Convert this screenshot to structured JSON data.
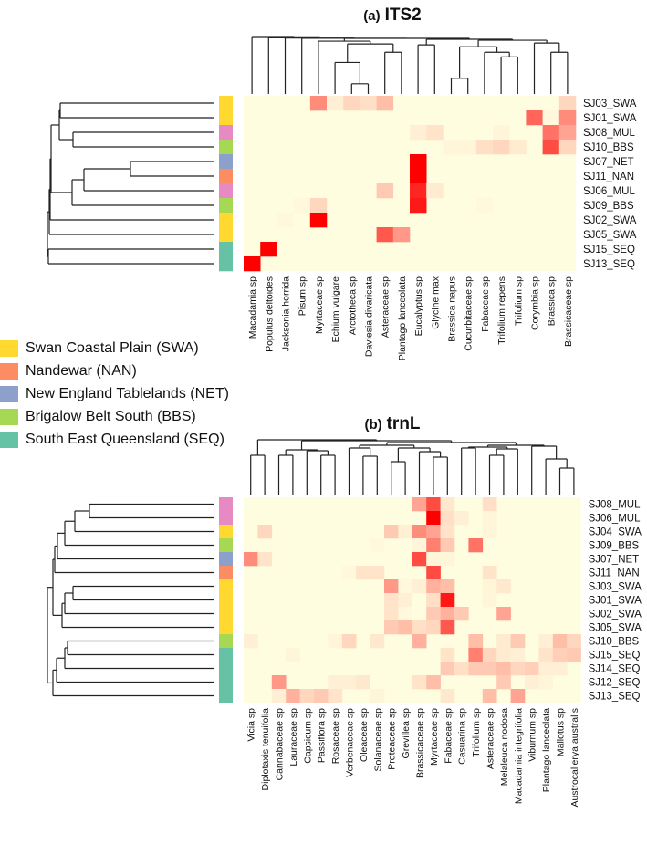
{
  "legend": [
    {
      "label": "Swan Coastal Plain (SWA)",
      "code": "SWA",
      "color": "#ffd92f"
    },
    {
      "label": "Nandewar (NAN)",
      "code": "NAN",
      "color": "#fc8d62"
    },
    {
      "label": "New England Tablelands (NET)",
      "code": "NET",
      "color": "#8da0cb"
    },
    {
      "label": "Brigalow Belt South (BBS)",
      "code": "BBS",
      "color": "#a6d854"
    },
    {
      "label": "South East Queensland (SEQ)",
      "code": "SEQ",
      "color": "#66c2a5"
    }
  ],
  "group_colors": {
    "SWA": "#ffd92f",
    "NAN": "#fc8d62",
    "NET": "#8da0cb",
    "BBS": "#a6d854",
    "SEQ": "#66c2a5",
    "MUL": "#e78ac3"
  },
  "color_scale": {
    "low": "#fffde0",
    "high": "#ff0000",
    "min": 0,
    "max": 1
  },
  "chart_data": [
    {
      "type": "heatmap",
      "title_prefix": "(a)",
      "title": "ITS2",
      "rows": [
        "SJ03_SWA",
        "SJ01_SWA",
        "SJ08_MUL",
        "SJ10_BBS",
        "SJ07_NET",
        "SJ11_NAN",
        "SJ06_MUL",
        "SJ09_BBS",
        "SJ02_SWA",
        "SJ05_SWA",
        "SJ15_SEQ",
        "SJ13_SEQ"
      ],
      "row_groups": [
        "SWA",
        "SWA",
        "MUL",
        "BBS",
        "NET",
        "NAN",
        "MUL",
        "BBS",
        "SWA",
        "SWA",
        "SEQ",
        "SEQ"
      ],
      "columns": [
        "Macadamia sp",
        "Populus deltoides",
        "Jacksonia horrida",
        "Pisum sp",
        "Myrtaceae sp",
        "Echium vulgare",
        "Arctotheca sp",
        "Daviesia divaricata",
        "Asteraceae sp",
        "Plantago lanceolata",
        "Eucalyptus sp",
        "Glycine max",
        "Brassica napus",
        "Cucurbitaceae sp",
        "Fabaceae sp",
        "Trifolium repens",
        "Trifolium sp",
        "Corymbia sp",
        "Brassica sp",
        "Brassicaceae sp"
      ],
      "values": [
        [
          0,
          0,
          0,
          0,
          0.45,
          0.05,
          0.15,
          0.12,
          0.25,
          0,
          0,
          0,
          0,
          0,
          0,
          0,
          0,
          0,
          0,
          0.15
        ],
        [
          0,
          0,
          0,
          0,
          0,
          0,
          0,
          0,
          0,
          0,
          0,
          0,
          0,
          0,
          0,
          0,
          0,
          0.6,
          0.02,
          0.45
        ],
        [
          0,
          0,
          0,
          0,
          0,
          0,
          0,
          0,
          0,
          0,
          0.05,
          0.1,
          0,
          0,
          0,
          0.03,
          0,
          0,
          0.55,
          0.35
        ],
        [
          0,
          0,
          0,
          0,
          0,
          0,
          0,
          0,
          0,
          0,
          0,
          0,
          0.03,
          0.03,
          0.12,
          0.15,
          0.07,
          0,
          0.7,
          0.15
        ],
        [
          0,
          0,
          0,
          0,
          0,
          0,
          0,
          0,
          0,
          0,
          1,
          0,
          0,
          0,
          0,
          0,
          0,
          0,
          0,
          0
        ],
        [
          0,
          0,
          0,
          0,
          0,
          0,
          0,
          0,
          0,
          0,
          1,
          0,
          0,
          0,
          0,
          0,
          0,
          0,
          0,
          0
        ],
        [
          0,
          0,
          0,
          0,
          0,
          0,
          0,
          0,
          0.2,
          0,
          0.85,
          0.07,
          0,
          0,
          0,
          0,
          0,
          0,
          0,
          0
        ],
        [
          0,
          0,
          0,
          0.02,
          0.15,
          0,
          0,
          0,
          0,
          0,
          0.9,
          0,
          0,
          0,
          0.02,
          0,
          0,
          0,
          0,
          0
        ],
        [
          0,
          0,
          0.02,
          0,
          1,
          0,
          0,
          0,
          0,
          0,
          0,
          0,
          0,
          0,
          0,
          0,
          0,
          0,
          0,
          0
        ],
        [
          0,
          0,
          0,
          0,
          0,
          0,
          0,
          0,
          0.65,
          0.4,
          0,
          0,
          0,
          0,
          0,
          0,
          0,
          0,
          0,
          0
        ],
        [
          0,
          1,
          0,
          0,
          0,
          0,
          0,
          0,
          0,
          0,
          0,
          0,
          0,
          0,
          0,
          0,
          0,
          0,
          0,
          0
        ],
        [
          1,
          0,
          0,
          0,
          0,
          0,
          0,
          0,
          0,
          0,
          0,
          0,
          0,
          0,
          0,
          0,
          0,
          0,
          0,
          0
        ]
      ],
      "value_range": [
        0,
        1
      ]
    },
    {
      "type": "heatmap",
      "title_prefix": "(b)",
      "title": "trnL",
      "rows": [
        "SJ08_MUL",
        "SJ06_MUL",
        "SJ04_SWA",
        "SJ09_BBS",
        "SJ07_NET",
        "SJ11_NAN",
        "SJ03_SWA",
        "SJ01_SWA",
        "SJ02_SWA",
        "SJ05_SWA",
        "SJ10_BBS",
        "SJ15_SEQ",
        "SJ14_SEQ",
        "SJ12_SEQ",
        "SJ13_SEQ"
      ],
      "row_groups": [
        "MUL",
        "MUL",
        "SWA",
        "BBS",
        "NET",
        "NAN",
        "SWA",
        "SWA",
        "SWA",
        "SWA",
        "BBS",
        "SEQ",
        "SEQ",
        "SEQ",
        "SEQ"
      ],
      "columns": [
        "Vicia sp",
        "Diplotaxis tenuifolia",
        "Cannabaceae sp",
        "Lauraceae sp",
        "Capsicum sp",
        "Passiflora sp",
        "Rosaceae sp",
        "Verbenaceae sp",
        "Oleaceae sp",
        "Solanaceae sp",
        "Proteaceae sp",
        "Grevillea sp",
        "Brassicaceae sp",
        "Myrtaceae sp",
        "Fabaceae sp",
        "Casuarina sp",
        "Trifolium sp",
        "Asteraceae sp",
        "Melaleuca nodosa",
        "Macadamia integrifolia",
        "Viburnum sp",
        "Plantago lanceolata",
        "Mallotus sp",
        "Austrocallerya australis"
      ],
      "values": [
        [
          0,
          0,
          0,
          0,
          0,
          0,
          0,
          0,
          0,
          0,
          0,
          0,
          0.35,
          0.7,
          0.08,
          0,
          0,
          0.12,
          0,
          0,
          0,
          0,
          0,
          0
        ],
        [
          0,
          0,
          0,
          0,
          0,
          0,
          0,
          0,
          0,
          0,
          0,
          0,
          0,
          1,
          0.12,
          0.05,
          0,
          0.03,
          0,
          0,
          0,
          0,
          0,
          0
        ],
        [
          0,
          0.15,
          0,
          0,
          0,
          0,
          0,
          0,
          0,
          0,
          0.2,
          0.05,
          0.45,
          0.35,
          0.1,
          0,
          0,
          0.03,
          0,
          0,
          0,
          0,
          0,
          0
        ],
        [
          0,
          0,
          0,
          0,
          0,
          0,
          0,
          0,
          0,
          0.02,
          0,
          0,
          0.03,
          0.5,
          0.2,
          0,
          0.55,
          0,
          0,
          0,
          0,
          0,
          0,
          0
        ],
        [
          0.45,
          0.1,
          0,
          0,
          0,
          0,
          0,
          0,
          0,
          0,
          0,
          0,
          0.7,
          0.03,
          0.03,
          0,
          0,
          0,
          0,
          0,
          0,
          0,
          0,
          0
        ],
        [
          0,
          0,
          0,
          0,
          0,
          0,
          0,
          0.02,
          0.1,
          0.1,
          0,
          0,
          0,
          0.7,
          0,
          0,
          0,
          0.1,
          0,
          0,
          0,
          0,
          0,
          0
        ],
        [
          0,
          0,
          0,
          0,
          0,
          0,
          0,
          0,
          0,
          0,
          0.4,
          0.02,
          0.05,
          0.3,
          0.25,
          0,
          0,
          0.03,
          0.08,
          0,
          0,
          0,
          0,
          0
        ],
        [
          0,
          0,
          0,
          0,
          0,
          0,
          0,
          0,
          0,
          0,
          0.1,
          0.05,
          0,
          0.12,
          0.9,
          0,
          0,
          0.03,
          0,
          0,
          0,
          0,
          0,
          0
        ],
        [
          0,
          0,
          0,
          0,
          0,
          0,
          0,
          0,
          0,
          0,
          0.1,
          0.02,
          0,
          0.2,
          0.3,
          0.2,
          0,
          0,
          0.35,
          0,
          0,
          0,
          0,
          0
        ],
        [
          0,
          0,
          0,
          0,
          0,
          0,
          0,
          0,
          0,
          0,
          0.2,
          0.25,
          0.12,
          0.15,
          0.65,
          0,
          0,
          0,
          0,
          0,
          0,
          0,
          0,
          0
        ],
        [
          0.05,
          0,
          0,
          0,
          0,
          0,
          0.03,
          0.15,
          0,
          0.08,
          0,
          0,
          0.3,
          0,
          0,
          0,
          0.25,
          0,
          0.07,
          0.2,
          0,
          0.05,
          0.25,
          0.15
        ],
        [
          0,
          0,
          0,
          0.03,
          0,
          0,
          0,
          0,
          0,
          0,
          0,
          0,
          0,
          0,
          0.1,
          0,
          0.5,
          0.15,
          0.07,
          0.05,
          0,
          0.1,
          0.18,
          0.2
        ],
        [
          0,
          0,
          0,
          0,
          0,
          0,
          0,
          0,
          0,
          0,
          0,
          0,
          0,
          0,
          0.2,
          0.12,
          0.2,
          0.2,
          0.25,
          0.15,
          0.18,
          0.05,
          0.05,
          0
        ],
        [
          0,
          0,
          0.4,
          0,
          0,
          0,
          0.05,
          0.05,
          0.08,
          0,
          0,
          0,
          0.1,
          0.25,
          0,
          0,
          0,
          0,
          0.2,
          0,
          0.05,
          0.03,
          0,
          0
        ],
        [
          0,
          0,
          0.05,
          0.3,
          0.15,
          0.2,
          0.1,
          0,
          0,
          0.03,
          0,
          0,
          0,
          0,
          0.08,
          0,
          0,
          0.25,
          0,
          0.35,
          0,
          0,
          0,
          0
        ]
      ],
      "value_range": [
        0,
        1
      ]
    }
  ]
}
